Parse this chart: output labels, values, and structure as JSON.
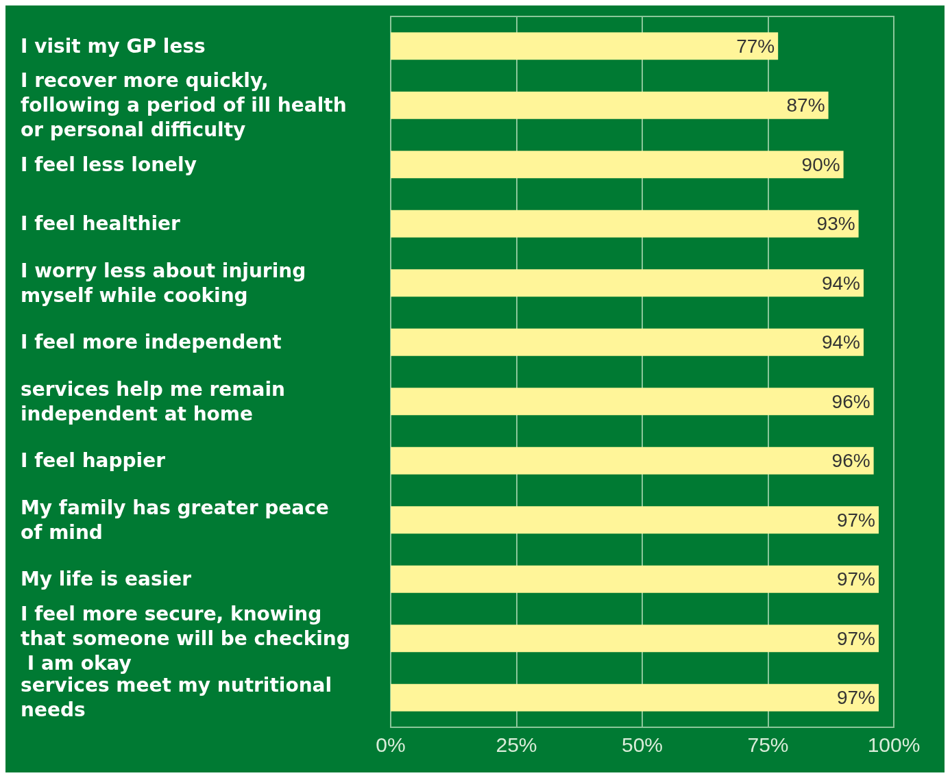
{
  "chart_data": {
    "type": "bar",
    "orientation": "horizontal",
    "categories": [
      "I visit my GP less",
      "I recover more quickly, following a period of ill health or personal difficulty",
      "I feel less lonely",
      "I feel healthier",
      "I worry less about injuring myself while cooking",
      "I feel more independent",
      "services help me remain independent at home",
      "I feel happier",
      "My family has greater peace of mind",
      "My life is easier",
      "I feel more secure, knowing that someone will be checking I am okay",
      "services meet my nutritional needs"
    ],
    "values": [
      77,
      87,
      90,
      93,
      94,
      94,
      96,
      96,
      97,
      97,
      97,
      97
    ],
    "value_labels": [
      "77%",
      "87%",
      "90%",
      "93%",
      "94%",
      "94%",
      "96%",
      "96%",
      "97%",
      "97%",
      "97%",
      "97%"
    ],
    "color": "#fff599",
    "xlim": [
      0,
      100
    ],
    "xticks": [
      {
        "value": 0,
        "label": "0%"
      },
      {
        "value": 25,
        "label": "25%"
      },
      {
        "value": 50,
        "label": "50%"
      },
      {
        "value": 75,
        "label": "75%"
      },
      {
        "value": 100,
        "label": "100%"
      }
    ],
    "grid": "x"
  }
}
